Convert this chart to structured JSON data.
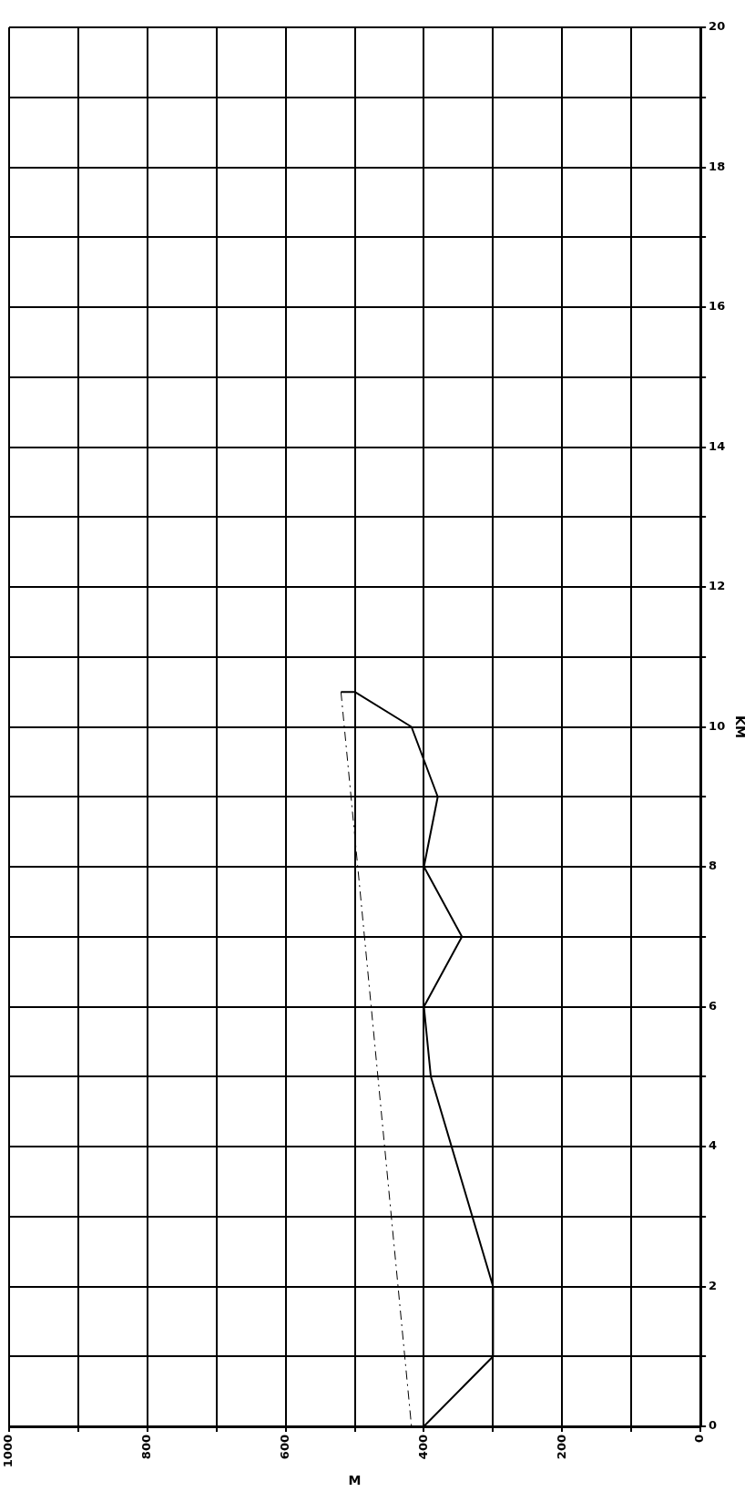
{
  "chart_data": {
    "type": "line",
    "xlabel": "M",
    "ylabel": "KM",
    "xlim": [
      1000,
      0
    ],
    "xticks": [
      {
        "value": 1000,
        "label": "1000"
      },
      {
        "value": 900,
        "label": null
      },
      800,
      {
        "value": 700,
        "label": null
      },
      600,
      {
        "value": 500,
        "label": null
      },
      400,
      {
        "value": 300,
        "label": null
      },
      200,
      {
        "value": 100,
        "label": null
      },
      0
    ],
    "ylim": [
      0,
      20
    ],
    "yticks": [
      0,
      {
        "value": 1,
        "label": null
      },
      2,
      {
        "value": 3,
        "label": null
      },
      4,
      {
        "value": 5,
        "label": null
      },
      6,
      {
        "value": 7,
        "label": null
      },
      8,
      {
        "value": 9,
        "label": null
      },
      10,
      {
        "value": 11,
        "label": null
      },
      12,
      {
        "value": 13,
        "label": null
      },
      14,
      {
        "value": 15,
        "label": null
      },
      16,
      {
        "value": 17,
        "label": null
      },
      18,
      {
        "value": 19,
        "label": null
      },
      20
    ],
    "grid": true,
    "legend": false,
    "marker": "none",
    "series": [
      {
        "color": "#000000",
        "line_style": "solid",
        "x": [
          400,
          300,
          300,
          390,
          400,
          345,
          400,
          380,
          418,
          500,
          520
        ],
        "values": [
          0,
          1,
          2,
          5,
          6,
          7,
          8,
          9,
          10,
          10.5,
          10.5
        ]
      },
      {
        "color": "#000000",
        "line_style": "dashed",
        "x": [
          520,
          418
        ],
        "values": [
          10.5,
          0
        ]
      }
    ]
  }
}
